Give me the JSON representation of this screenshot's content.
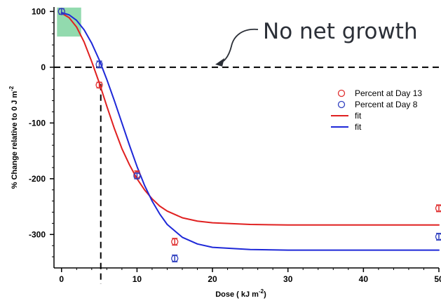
{
  "chart_data": {
    "type": "scatter",
    "title": "",
    "xlabel": "Dose ( kJ m",
    "xlabel_sup": "-2",
    "xlabel_suffix": ")",
    "ylabel": "% Change relative to 0 J m",
    "ylabel_sup": "-2",
    "xlim": [
      -1,
      50
    ],
    "ylim": [
      -360,
      108
    ],
    "x_ticks": [
      0,
      10,
      20,
      30,
      40,
      50
    ],
    "x_tick_labels": [
      "0",
      "10",
      "20",
      "30",
      "40",
      "50"
    ],
    "y_ticks": [
      100,
      0,
      -100,
      -200,
      -300
    ],
    "y_tick_labels": [
      "100",
      "0",
      "-100",
      "-200",
      "-300"
    ],
    "grid": false,
    "legend_position": "right",
    "series": [
      {
        "name": "Percent at Day 13",
        "kind": "points",
        "color": "#e03030",
        "marker": "open-circle",
        "x": [
          0,
          5,
          10,
          15,
          50
        ],
        "y": [
          100,
          -32,
          -193,
          -313,
          -253
        ],
        "err": [
          0,
          5,
          7,
          6,
          6
        ]
      },
      {
        "name": "Percent at Day 8",
        "kind": "points",
        "color": "#3040c0",
        "marker": "open-circle",
        "x": [
          0,
          5,
          10,
          15,
          50
        ],
        "y": [
          100,
          5,
          -195,
          -343,
          -304
        ],
        "err": [
          5,
          6,
          5,
          6,
          6
        ]
      },
      {
        "name": "fit",
        "kind": "line",
        "color": "#e02020",
        "x": [
          0,
          1,
          2,
          3,
          4,
          5,
          6,
          7,
          8,
          9,
          10,
          11,
          12,
          13,
          14,
          16,
          18,
          20,
          25,
          30,
          40,
          50
        ],
        "y": [
          97,
          89,
          72,
          45,
          10,
          -28,
          -70,
          -110,
          -146,
          -175,
          -200,
          -220,
          -236,
          -249,
          -258,
          -270,
          -276,
          -279,
          -282,
          -283,
          -283,
          -283
        ]
      },
      {
        "name": "fit",
        "kind": "line",
        "color": "#1e28d8",
        "x": [
          0,
          1,
          2,
          3,
          4,
          5,
          6,
          7,
          8,
          9,
          10,
          11,
          12,
          13,
          14,
          16,
          18,
          20,
          25,
          30,
          40,
          50
        ],
        "y": [
          98,
          94,
          84,
          67,
          43,
          13,
          -22,
          -60,
          -100,
          -140,
          -178,
          -212,
          -240,
          -263,
          -282,
          -305,
          -317,
          -323,
          -327,
          -328,
          -328,
          -328
        ]
      }
    ],
    "reference_lines": {
      "no_growth_y": 0,
      "threshold_x": 5.2
    },
    "highlight_box": {
      "x": [
        -0.6,
        2.6
      ],
      "y": [
        55,
        107
      ],
      "color": "#7fd3a0"
    },
    "annotation": {
      "text": "No net growth",
      "arrow_target": [
        20,
        0
      ]
    }
  }
}
